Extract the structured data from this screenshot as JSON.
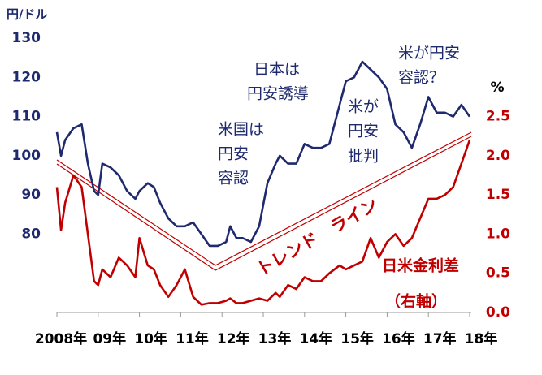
{
  "chart_data": {
    "type": "line",
    "y_label": "円/ドル",
    "y2_label": "%",
    "x": [
      2008.0,
      2008.1,
      2008.2,
      2008.4,
      2008.6,
      2008.75,
      2008.9,
      2009.0,
      2009.1,
      2009.3,
      2009.5,
      2009.7,
      2009.9,
      2010.0,
      2010.2,
      2010.35,
      2010.5,
      2010.7,
      2010.9,
      2011.1,
      2011.3,
      2011.5,
      2011.7,
      2011.9,
      2012.1,
      2012.2,
      2012.35,
      2012.5,
      2012.7,
      2012.9,
      2013.1,
      2013.3,
      2013.4,
      2013.6,
      2013.8,
      2014.0,
      2014.2,
      2014.4,
      2014.6,
      2014.85,
      2015.0,
      2015.2,
      2015.4,
      2015.6,
      2015.8,
      2016.0,
      2016.2,
      2016.4,
      2016.6,
      2016.8,
      2017.0,
      2017.2,
      2017.4,
      2017.6,
      2017.8,
      2018.0
    ],
    "series": [
      {
        "name": "円/ドル",
        "color": "#1f2a6e",
        "values": [
          106,
          100,
          104,
          107,
          108,
          98,
          91,
          90,
          98,
          97,
          95,
          91,
          89,
          91,
          93,
          92,
          88,
          84,
          82,
          82,
          83,
          80,
          77,
          77,
          78,
          82,
          79,
          79,
          78,
          82,
          93,
          98,
          100,
          98,
          98,
          103,
          102,
          102,
          103,
          113,
          119,
          120,
          124,
          122,
          120,
          117,
          108,
          106,
          102,
          108,
          115,
          111,
          111,
          110,
          113,
          110
        ]
      },
      {
        "name": "日米金利差",
        "color": "#c00000",
        "axis": "y2",
        "values": [
          1.6,
          1.05,
          1.4,
          1.75,
          1.6,
          1.0,
          0.4,
          0.35,
          0.55,
          0.45,
          0.7,
          0.6,
          0.45,
          0.95,
          0.6,
          0.55,
          0.35,
          0.2,
          0.35,
          0.55,
          0.2,
          0.1,
          0.12,
          0.12,
          0.15,
          0.18,
          0.12,
          0.12,
          0.15,
          0.18,
          0.15,
          0.25,
          0.2,
          0.35,
          0.3,
          0.45,
          0.4,
          0.4,
          0.5,
          0.6,
          0.55,
          0.6,
          0.65,
          0.95,
          0.7,
          0.9,
          1.0,
          0.85,
          0.95,
          1.2,
          1.45,
          1.45,
          1.5,
          1.6,
          1.9,
          2.2
        ]
      }
    ],
    "xlim": [
      2008,
      2018
    ],
    "xticks": [
      {
        "value": 2008,
        "label": "2008年"
      },
      {
        "value": 2009,
        "label": "09年"
      },
      {
        "value": 2010,
        "label": "10年"
      },
      {
        "value": 2011,
        "label": "11年"
      },
      {
        "value": 2012,
        "label": "12年"
      },
      {
        "value": 2013,
        "label": "13年"
      },
      {
        "value": 2014,
        "label": "14年"
      },
      {
        "value": 2015,
        "label": "15年"
      },
      {
        "value": 2016,
        "label": "16年"
      },
      {
        "value": 2017,
        "label": "17年"
      },
      {
        "value": 2018,
        "label": "18年"
      }
    ],
    "ylim": [
      60,
      130
    ],
    "yticks": [
      80,
      90,
      100,
      110,
      120,
      130
    ],
    "y2lim": [
      0,
      3.5
    ],
    "y2ticks": [
      {
        "value": 0,
        "label": "0.0"
      },
      0.5,
      {
        "value": 1,
        "label": "1.0"
      },
      1.5,
      {
        "value": 2,
        "label": "2.0"
      },
      2.5
    ],
    "annotations": [
      {
        "lines": [
          "米国は",
          "円安",
          "容認"
        ]
      },
      {
        "lines": [
          "日本は",
          "円安誘導"
        ]
      },
      {
        "lines": [
          "米が",
          "円安",
          "批判"
        ]
      },
      {
        "lines": [
          "米が円安",
          "容認？"
        ]
      },
      {
        "lines": [
          "トレンド　ライン"
        ]
      },
      {
        "lines": [
          "日米金利差"
        ]
      },
      {
        "lines": [
          "（右軸）"
        ]
      }
    ]
  }
}
